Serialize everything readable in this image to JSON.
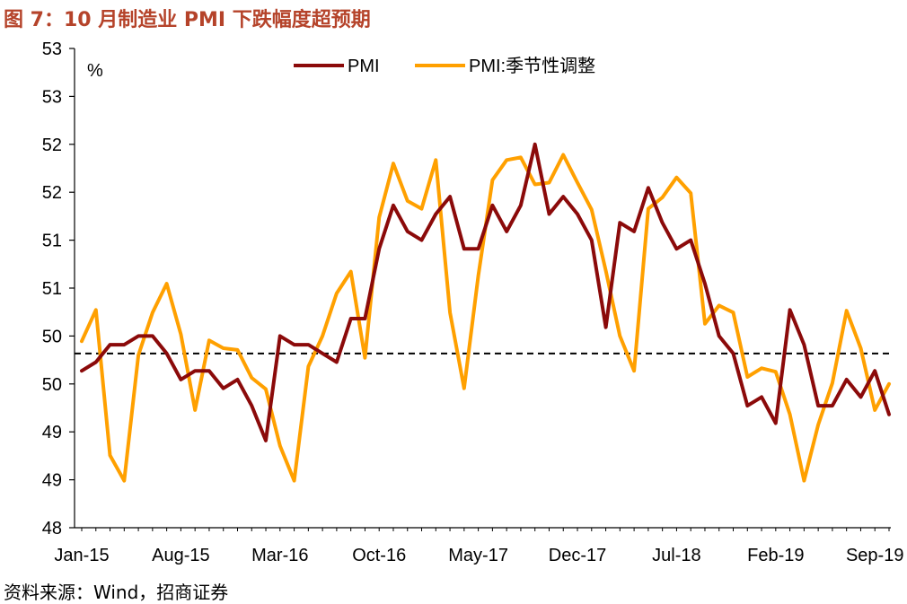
{
  "header": {
    "title": "图 7：10 月制造业 PMI 下跌幅度超预期"
  },
  "footer": {
    "source": "资料来源：Wind，招商证券"
  },
  "chart_data": {
    "type": "line",
    "title": "图 7：10 月制造业 PMI 下跌幅度超预期",
    "ylabel": "%",
    "xlabel": "",
    "ylim": [
      48,
      53.5
    ],
    "y_tick_labels": [
      "48",
      "49",
      "49",
      "50",
      "50",
      "51",
      "51",
      "52",
      "52",
      "53",
      "53"
    ],
    "x_tick_labels": [
      "Jan-15",
      "Aug-15",
      "Mar-16",
      "Oct-16",
      "May-17",
      "Dec-17",
      "Jul-18",
      "Feb-19",
      "Sep-19"
    ],
    "reference_line": 50.0,
    "legend_position": "top-center",
    "colors": {
      "PMI": "#8b0a0a",
      "PMI:季节性调整": "#ffa000",
      "reference": "#000000"
    },
    "x": [
      "Jan-15",
      "Feb-15",
      "Mar-15",
      "Apr-15",
      "May-15",
      "Jun-15",
      "Jul-15",
      "Aug-15",
      "Sep-15",
      "Oct-15",
      "Nov-15",
      "Dec-15",
      "Jan-16",
      "Feb-16",
      "Mar-16",
      "Apr-16",
      "May-16",
      "Jun-16",
      "Jul-16",
      "Aug-16",
      "Sep-16",
      "Oct-16",
      "Nov-16",
      "Dec-16",
      "Jan-17",
      "Feb-17",
      "Mar-17",
      "Apr-17",
      "May-17",
      "Jun-17",
      "Jul-17",
      "Aug-17",
      "Sep-17",
      "Oct-17",
      "Nov-17",
      "Dec-17",
      "Jan-18",
      "Feb-18",
      "Mar-18",
      "Apr-18",
      "May-18",
      "Jun-18",
      "Jul-18",
      "Aug-18",
      "Sep-18",
      "Oct-18",
      "Nov-18",
      "Dec-18",
      "Jan-19",
      "Feb-19",
      "Mar-19",
      "Apr-19",
      "May-19",
      "Jun-19",
      "Jul-19",
      "Aug-19",
      "Sep-19",
      "Oct-19"
    ],
    "series": [
      {
        "name": "PMI",
        "values": [
          49.8,
          49.9,
          50.1,
          50.1,
          50.2,
          50.2,
          50.0,
          49.7,
          49.8,
          49.8,
          49.6,
          49.7,
          49.4,
          49.0,
          50.2,
          50.1,
          50.1,
          50.0,
          49.9,
          50.4,
          50.4,
          51.2,
          51.7,
          51.4,
          51.3,
          51.6,
          51.8,
          51.2,
          51.2,
          51.7,
          51.4,
          51.7,
          52.4,
          51.6,
          51.8,
          51.6,
          51.3,
          50.3,
          51.5,
          51.4,
          51.9,
          51.5,
          51.2,
          51.3,
          50.8,
          50.2,
          50.0,
          49.4,
          49.5,
          49.2,
          50.5,
          50.1,
          49.4,
          49.4,
          49.7,
          49.5,
          49.8,
          49.3
        ]
      },
      {
        "name": "PMI:季节性调整",
        "values": [
          50.14,
          50.5,
          48.83,
          48.54,
          49.98,
          50.47,
          50.8,
          50.22,
          49.35,
          50.15,
          50.06,
          50.04,
          49.72,
          49.59,
          48.94,
          48.54,
          49.85,
          50.2,
          50.69,
          50.94,
          49.95,
          51.56,
          52.18,
          51.75,
          51.66,
          52.22,
          50.47,
          49.6,
          50.89,
          51.99,
          52.22,
          52.25,
          51.94,
          51.96,
          52.28,
          51.96,
          51.65,
          50.95,
          50.2,
          49.8,
          51.66,
          51.79,
          52.02,
          51.84,
          50.34,
          50.55,
          50.47,
          49.73,
          49.83,
          49.79,
          49.3,
          48.54,
          49.18,
          49.66,
          50.49,
          50.06,
          49.35,
          49.65
        ]
      }
    ]
  }
}
